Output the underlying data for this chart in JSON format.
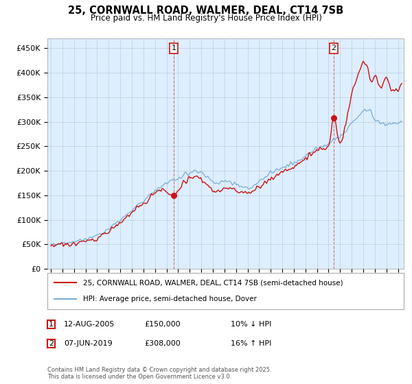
{
  "title": "25, CORNWALL ROAD, WALMER, DEAL, CT14 7SB",
  "subtitle": "Price paid vs. HM Land Registry's House Price Index (HPI)",
  "ylabel_ticks": [
    "£0",
    "£50K",
    "£100K",
    "£150K",
    "£200K",
    "£250K",
    "£300K",
    "£350K",
    "£400K",
    "£450K"
  ],
  "ytick_values": [
    0,
    50000,
    100000,
    150000,
    200000,
    250000,
    300000,
    350000,
    400000,
    450000
  ],
  "ylim": [
    0,
    470000
  ],
  "xlim_start": 1994.7,
  "xlim_end": 2025.5,
  "hpi_color": "#7aadd4",
  "price_color": "#cc1111",
  "chart_bg": "#ddeeff",
  "transaction1_date": 2005.617,
  "transaction1_price": 150000,
  "transaction1_label": "1",
  "transaction2_date": 2019.44,
  "transaction2_price": 308000,
  "transaction2_label": "2",
  "legend_line1": "25, CORNWALL ROAD, WALMER, DEAL, CT14 7SB (semi-detached house)",
  "legend_line2": "HPI: Average price, semi-detached house, Dover",
  "note1_label": "1",
  "note1_date": "12-AUG-2005",
  "note1_price": "£150,000",
  "note1_hpi": "10% ↓ HPI",
  "note2_label": "2",
  "note2_date": "07-JUN-2019",
  "note2_price": "£308,000",
  "note2_hpi": "16% ↑ HPI",
  "copyright": "Contains HM Land Registry data © Crown copyright and database right 2025.\nThis data is licensed under the Open Government Licence v3.0.",
  "background_color": "#ffffff",
  "grid_color": "#bbccdd"
}
